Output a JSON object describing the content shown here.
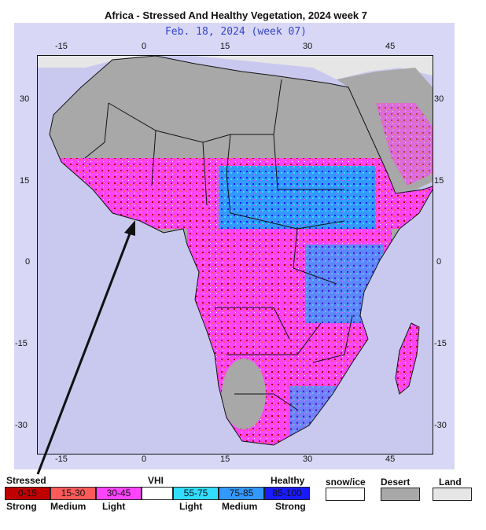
{
  "title": "Africa - Stressed And Healthy Vegetation, 2024 week 7",
  "subtitle": "Feb. 18, 2024 (week 07)",
  "axes": {
    "top": [
      "-15",
      "0",
      "15",
      "30",
      "45"
    ],
    "bottom": [
      "-15",
      "0",
      "15",
      "30",
      "45"
    ],
    "left": [
      "30",
      "15",
      "0",
      "-15",
      "-30"
    ],
    "right": [
      "30",
      "15",
      "0",
      "-15",
      "-30"
    ]
  },
  "legend": {
    "stressed_label": "Stressed",
    "healthy_label": "Healthy",
    "vhi_label": "VHI",
    "bins": [
      "0-15",
      "15-30",
      "30-45",
      "",
      "55-75",
      "75-85",
      "85-100"
    ],
    "strength_labels": [
      "Strong",
      "Medium",
      "Light",
      "Light",
      "Medium",
      "Strong"
    ],
    "extra": [
      "snow/ice",
      "Desert",
      "Land"
    ]
  },
  "colors": {
    "strong_stress": "#c00000",
    "medium_stress": "#ff5a5a",
    "light_stress": "#ff44ff",
    "neutral": "#ffffff",
    "light_healthy": "#33ddff",
    "medium_healthy": "#3399ff",
    "strong_healthy": "#1a1aff",
    "desert": "#a8a8a8",
    "land": "#e6e6e6",
    "ocean": "#c9c9f0"
  }
}
